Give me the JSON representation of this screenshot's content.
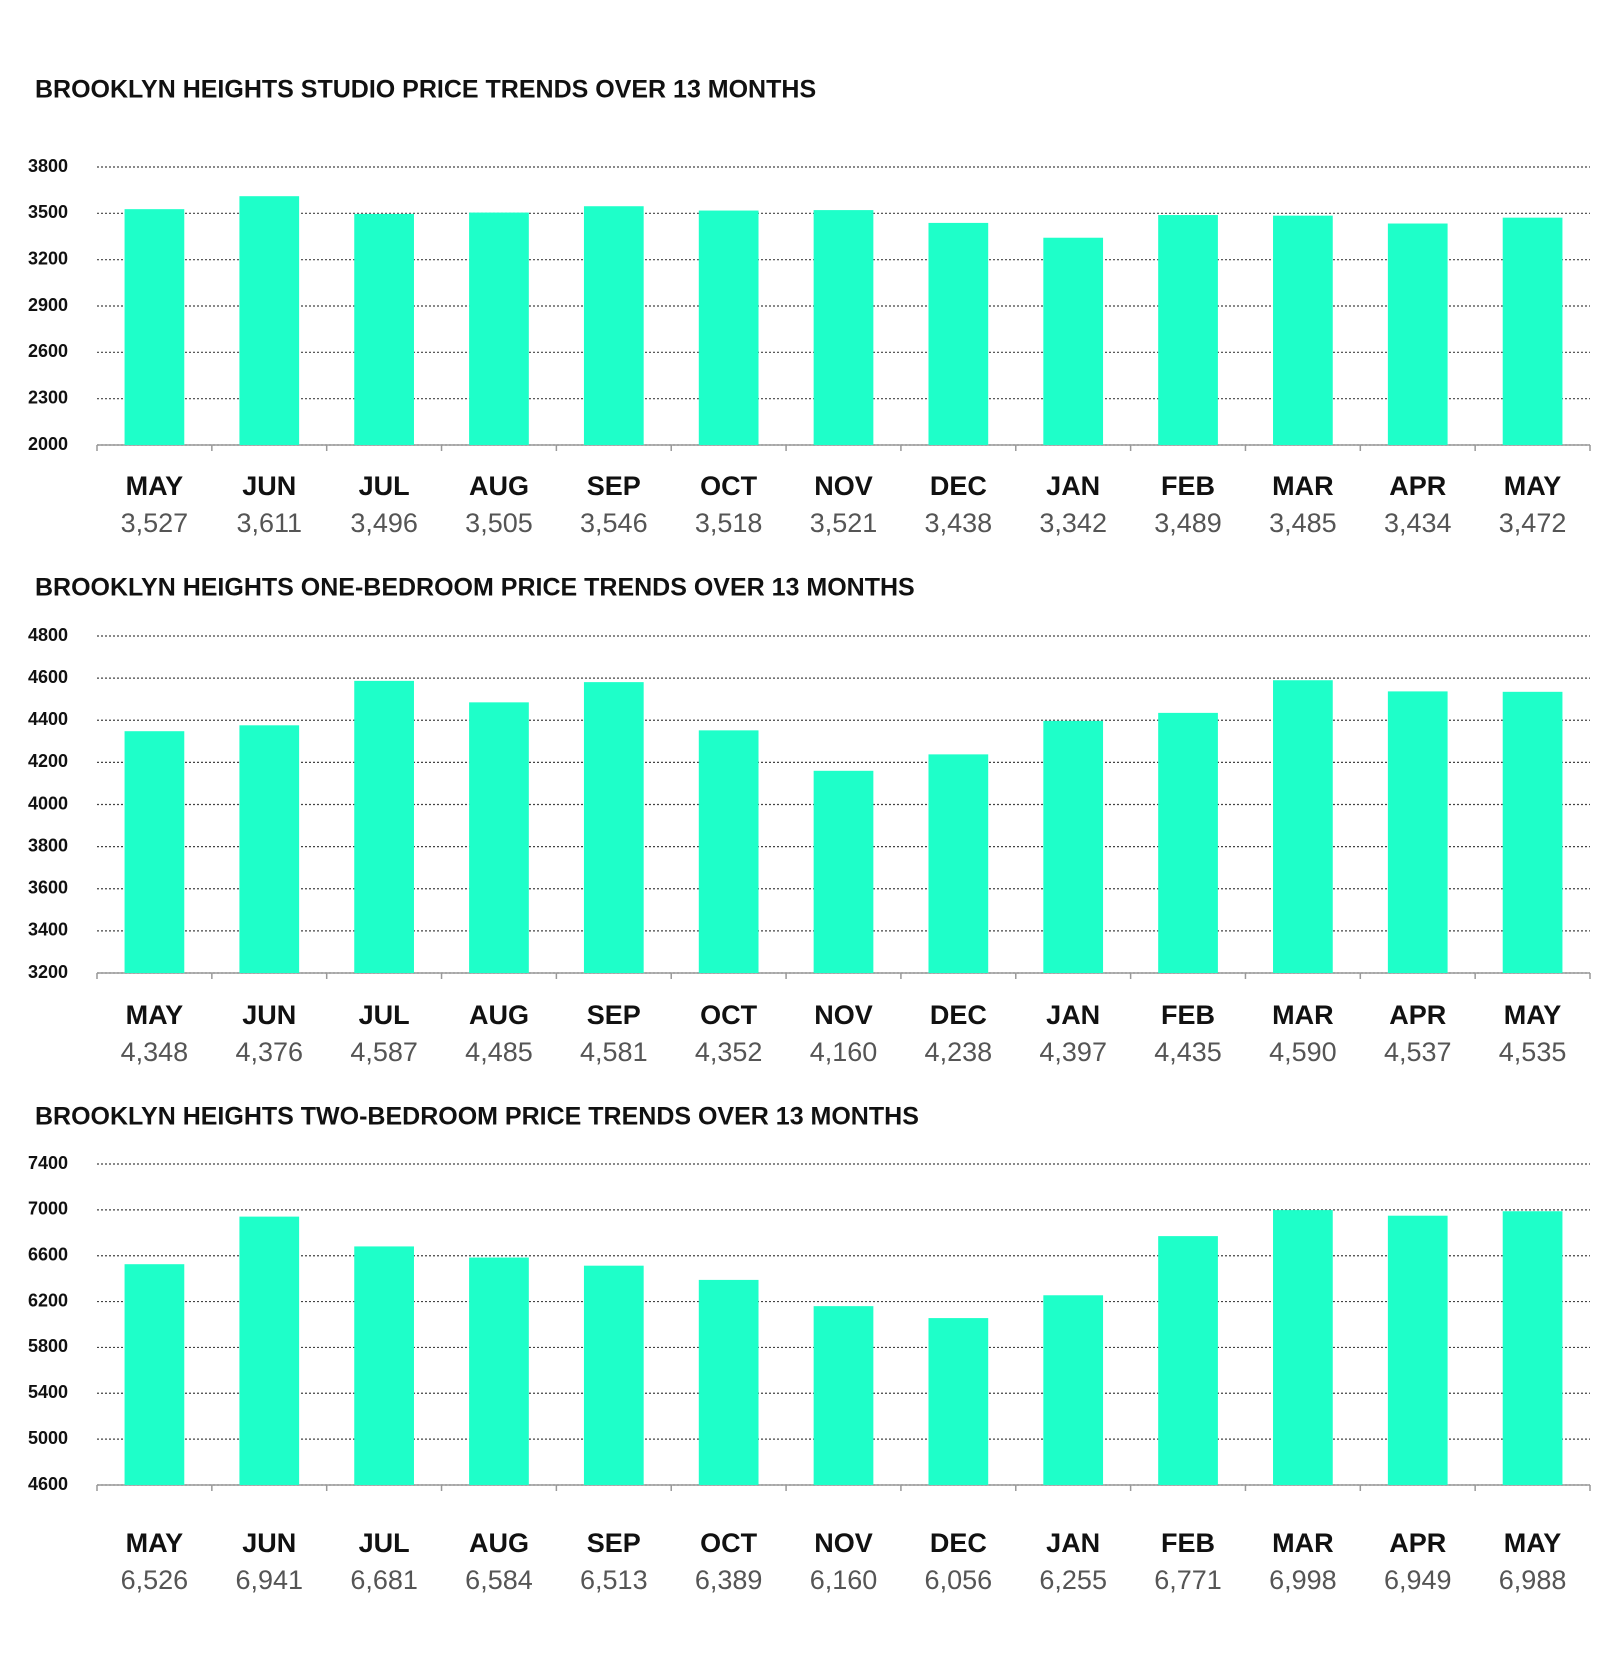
{
  "chart_data": [
    {
      "type": "bar",
      "title": "BROOKLYN HEIGHTS STUDIO PRICE TRENDS OVER 13 MONTHS",
      "categories": [
        "MAY",
        "JUN",
        "JUL",
        "AUG",
        "SEP",
        "OCT",
        "NOV",
        "DEC",
        "JAN",
        "FEB",
        "MAR",
        "APR",
        "MAY"
      ],
      "values": [
        3527,
        3611,
        3496,
        3505,
        3546,
        3518,
        3521,
        3438,
        3342,
        3489,
        3485,
        3434,
        3472
      ],
      "value_labels": [
        "3,527",
        "3,611",
        "3,496",
        "3,505",
        "3,546",
        "3,518",
        "3,521",
        "3,438",
        "3,342",
        "3,489",
        "3,485",
        "3,434",
        "3,472"
      ],
      "color": "#1effc9",
      "ylim": [
        2000,
        3800
      ],
      "yticks": [
        2000,
        2300,
        2600,
        2900,
        3200,
        3500,
        3800
      ],
      "grid": true
    },
    {
      "type": "bar",
      "title": "BROOKLYN HEIGHTS ONE-BEDROOM PRICE TRENDS OVER 13 MONTHS",
      "categories": [
        "MAY",
        "JUN",
        "JUL",
        "AUG",
        "SEP",
        "OCT",
        "NOV",
        "DEC",
        "JAN",
        "FEB",
        "MAR",
        "APR",
        "MAY"
      ],
      "values": [
        4348,
        4376,
        4587,
        4485,
        4581,
        4352,
        4160,
        4238,
        4397,
        4435,
        4590,
        4537,
        4535
      ],
      "value_labels": [
        "4,348",
        "4,376",
        "4,587",
        "4,485",
        "4,581",
        "4,352",
        "4,160",
        "4,238",
        "4,397",
        "4,435",
        "4,590",
        "4,537",
        "4,535"
      ],
      "color": "#1effc9",
      "ylim": [
        3200,
        4800
      ],
      "yticks": [
        3200,
        3400,
        3600,
        3800,
        4000,
        4200,
        4400,
        4600,
        4800
      ],
      "grid": true
    },
    {
      "type": "bar",
      "title": "BROOKLYN HEIGHTS TWO-BEDROOM PRICE TRENDS OVER 13 MONTHS",
      "categories": [
        "MAY",
        "JUN",
        "JUL",
        "AUG",
        "SEP",
        "OCT",
        "NOV",
        "DEC",
        "JAN",
        "FEB",
        "MAR",
        "APR",
        "MAY"
      ],
      "values": [
        6526,
        6941,
        6681,
        6584,
        6513,
        6389,
        6160,
        6056,
        6255,
        6771,
        6998,
        6949,
        6988
      ],
      "value_labels": [
        "6,526",
        "6,941",
        "6,681",
        "6,584",
        "6,513",
        "6,389",
        "6,160",
        "6,056",
        "6,255",
        "6,771",
        "6,998",
        "6,949",
        "6,988"
      ],
      "color": "#1effc9",
      "ylim": [
        4600,
        7400
      ],
      "yticks": [
        4600,
        5000,
        5400,
        5800,
        6200,
        6600,
        7000,
        7400
      ],
      "grid": true
    }
  ]
}
